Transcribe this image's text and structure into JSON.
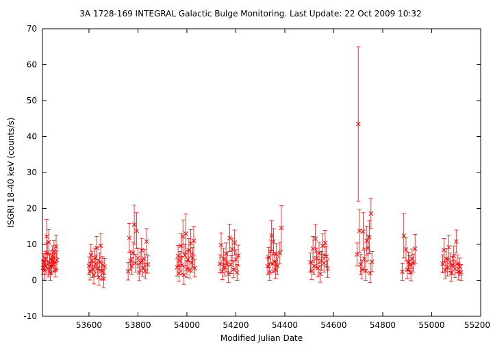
{
  "chart_data": {
    "type": "scatter",
    "title": "3A 1728-169   INTEGRAL Galactic Bulge Monitoring.  Last Update: 22 Oct 2009 10:32",
    "xlabel": "Modified Julian Date",
    "ylabel": "ISGRI 18-40 keV (counts/s)",
    "xlim": [
      53410,
      55200
    ],
    "ylim": [
      -10,
      70
    ],
    "x_ticks": [
      53600,
      53800,
      54000,
      54200,
      54400,
      54600,
      54800,
      55000,
      55200
    ],
    "y_ticks": [
      -10,
      0,
      10,
      20,
      30,
      40,
      50,
      60,
      70
    ],
    "grid": false,
    "legend": "none",
    "marker": "x",
    "series_color": "#ff0000",
    "series": [
      {
        "points": [
          {
            "x": 53412,
            "y": 3.5,
            "err": 2.0
          },
          {
            "x": 53415,
            "y": 5.2,
            "err": 2.2
          },
          {
            "x": 53418,
            "y": 2.8,
            "err": 2.5
          },
          {
            "x": 53421,
            "y": 6.1,
            "err": 2.0
          },
          {
            "x": 53424,
            "y": 4.0,
            "err": 2.3
          },
          {
            "x": 53427,
            "y": 12.2,
            "err": 4.8
          },
          {
            "x": 53430,
            "y": 7.5,
            "err": 3.0
          },
          {
            "x": 53433,
            "y": 3.2,
            "err": 2.2
          },
          {
            "x": 53436,
            "y": 10.6,
            "err": 3.5
          },
          {
            "x": 53439,
            "y": 4.8,
            "err": 2.6
          },
          {
            "x": 53442,
            "y": 2.1,
            "err": 2.1
          },
          {
            "x": 53445,
            "y": 5.9,
            "err": 2.4
          },
          {
            "x": 53448,
            "y": 3.7,
            "err": 2.2
          },
          {
            "x": 53451,
            "y": 6.8,
            "err": 2.8
          },
          {
            "x": 53454,
            "y": 4.4,
            "err": 2.2
          },
          {
            "x": 53457,
            "y": 8.1,
            "err": 3.0
          },
          {
            "x": 53460,
            "y": 5.0,
            "err": 2.5
          },
          {
            "x": 53463,
            "y": 3.0,
            "err": 2.0
          },
          {
            "x": 53466,
            "y": 9.4,
            "err": 3.2
          },
          {
            "x": 53469,
            "y": 5.6,
            "err": 2.6
          },
          {
            "x": 53600,
            "y": 4.0,
            "err": 2.5
          },
          {
            "x": 53604,
            "y": 2.5,
            "err": 2.4
          },
          {
            "x": 53608,
            "y": 7.0,
            "err": 3.0
          },
          {
            "x": 53612,
            "y": 5.5,
            "err": 2.6
          },
          {
            "x": 53616,
            "y": 3.0,
            "err": 2.2
          },
          {
            "x": 53620,
            "y": 1.5,
            "err": 2.5
          },
          {
            "x": 53624,
            "y": 6.2,
            "err": 2.8
          },
          {
            "x": 53628,
            "y": 4.6,
            "err": 2.4
          },
          {
            "x": 53632,
            "y": 9.0,
            "err": 3.2
          },
          {
            "x": 53636,
            "y": 3.4,
            "err": 2.3
          },
          {
            "x": 53640,
            "y": 0.8,
            "err": 2.2
          },
          {
            "x": 53644,
            "y": 5.1,
            "err": 2.5
          },
          {
            "x": 53648,
            "y": 9.6,
            "err": 3.4
          },
          {
            "x": 53652,
            "y": 2.6,
            "err": 2.5
          },
          {
            "x": 53656,
            "y": 4.2,
            "err": 2.4
          },
          {
            "x": 53660,
            "y": 0.5,
            "err": 2.5
          },
          {
            "x": 53664,
            "y": 3.8,
            "err": 2.3
          },
          {
            "x": 53760,
            "y": 2.5,
            "err": 2.4
          },
          {
            "x": 53765,
            "y": 11.8,
            "err": 4.0
          },
          {
            "x": 53770,
            "y": 5.5,
            "err": 2.7
          },
          {
            "x": 53775,
            "y": 3.9,
            "err": 2.4
          },
          {
            "x": 53780,
            "y": 7.6,
            "err": 3.1
          },
          {
            "x": 53785,
            "y": 15.5,
            "err": 5.4
          },
          {
            "x": 53790,
            "y": 4.8,
            "err": 2.5
          },
          {
            "x": 53795,
            "y": 13.8,
            "err": 5.0
          },
          {
            "x": 53800,
            "y": 6.2,
            "err": 2.8
          },
          {
            "x": 53805,
            "y": 2.2,
            "err": 2.3
          },
          {
            "x": 53810,
            "y": 5.0,
            "err": 2.6
          },
          {
            "x": 53815,
            "y": 8.4,
            "err": 3.3
          },
          {
            "x": 53820,
            "y": 3.5,
            "err": 2.4
          },
          {
            "x": 53825,
            "y": 6.0,
            "err": 2.6
          },
          {
            "x": 53830,
            "y": 2.6,
            "err": 2.2
          },
          {
            "x": 53835,
            "y": 10.8,
            "err": 3.6
          },
          {
            "x": 53840,
            "y": 4.4,
            "err": 2.4
          },
          {
            "x": 53960,
            "y": 3.6,
            "err": 2.4
          },
          {
            "x": 53964,
            "y": 6.8,
            "err": 2.9
          },
          {
            "x": 53968,
            "y": 2.0,
            "err": 2.3
          },
          {
            "x": 53972,
            "y": 5.4,
            "err": 2.6
          },
          {
            "x": 53976,
            "y": 9.6,
            "err": 3.4
          },
          {
            "x": 53980,
            "y": 4.2,
            "err": 2.5
          },
          {
            "x": 53984,
            "y": 12.2,
            "err": 4.6
          },
          {
            "x": 53988,
            "y": 1.5,
            "err": 2.6
          },
          {
            "x": 53992,
            "y": 7.0,
            "err": 3.0
          },
          {
            "x": 53996,
            "y": 13.0,
            "err": 5.5
          },
          {
            "x": 54000,
            "y": 3.1,
            "err": 2.3
          },
          {
            "x": 54004,
            "y": 5.8,
            "err": 2.6
          },
          {
            "x": 54008,
            "y": 8.4,
            "err": 3.2
          },
          {
            "x": 54012,
            "y": 2.8,
            "err": 2.4
          },
          {
            "x": 54016,
            "y": 10.3,
            "err": 3.8
          },
          {
            "x": 54020,
            "y": 4.9,
            "err": 2.6
          },
          {
            "x": 54024,
            "y": 6.3,
            "err": 2.8
          },
          {
            "x": 54028,
            "y": 11.0,
            "err": 4.0
          },
          {
            "x": 54032,
            "y": 3.4,
            "err": 2.4
          },
          {
            "x": 54135,
            "y": 4.6,
            "err": 2.5
          },
          {
            "x": 54140,
            "y": 9.8,
            "err": 3.4
          },
          {
            "x": 54145,
            "y": 2.5,
            "err": 2.3
          },
          {
            "x": 54150,
            "y": 6.0,
            "err": 2.8
          },
          {
            "x": 54155,
            "y": 3.6,
            "err": 2.4
          },
          {
            "x": 54160,
            "y": 7.4,
            "err": 3.0
          },
          {
            "x": 54165,
            "y": 5.0,
            "err": 2.6
          },
          {
            "x": 54170,
            "y": 1.8,
            "err": 2.4
          },
          {
            "x": 54175,
            "y": 11.8,
            "err": 3.8
          },
          {
            "x": 54180,
            "y": 4.4,
            "err": 2.5
          },
          {
            "x": 54185,
            "y": 8.6,
            "err": 3.1
          },
          {
            "x": 54190,
            "y": 3.0,
            "err": 2.3
          },
          {
            "x": 54195,
            "y": 10.5,
            "err": 3.5
          },
          {
            "x": 54200,
            "y": 5.8,
            "err": 2.7
          },
          {
            "x": 54205,
            "y": 2.2,
            "err": 2.2
          },
          {
            "x": 54210,
            "y": 6.9,
            "err": 2.9
          },
          {
            "x": 54330,
            "y": 3.9,
            "err": 2.4
          },
          {
            "x": 54334,
            "y": 6.4,
            "err": 2.8
          },
          {
            "x": 54338,
            "y": 2.3,
            "err": 2.3
          },
          {
            "x": 54342,
            "y": 8.0,
            "err": 3.2
          },
          {
            "x": 54346,
            "y": 12.4,
            "err": 4.2
          },
          {
            "x": 54350,
            "y": 4.6,
            "err": 2.5
          },
          {
            "x": 54354,
            "y": 10.8,
            "err": 3.6
          },
          {
            "x": 54358,
            "y": 5.2,
            "err": 2.6
          },
          {
            "x": 54362,
            "y": 2.9,
            "err": 2.3
          },
          {
            "x": 54366,
            "y": 7.2,
            "err": 3.0
          },
          {
            "x": 54370,
            "y": 4.0,
            "err": 2.4
          },
          {
            "x": 54380,
            "y": 7.6,
            "err": 3.0
          },
          {
            "x": 54386,
            "y": 14.6,
            "err": 6.2
          },
          {
            "x": 54505,
            "y": 5.0,
            "err": 2.6
          },
          {
            "x": 54510,
            "y": 2.6,
            "err": 2.4
          },
          {
            "x": 54515,
            "y": 8.8,
            "err": 3.4
          },
          {
            "x": 54520,
            "y": 4.0,
            "err": 2.5
          },
          {
            "x": 54525,
            "y": 11.6,
            "err": 3.9
          },
          {
            "x": 54530,
            "y": 6.2,
            "err": 2.8
          },
          {
            "x": 54535,
            "y": 3.4,
            "err": 2.4
          },
          {
            "x": 54540,
            "y": 7.6,
            "err": 3.0
          },
          {
            "x": 54545,
            "y": 1.8,
            "err": 2.3
          },
          {
            "x": 54550,
            "y": 5.4,
            "err": 2.6
          },
          {
            "x": 54555,
            "y": 9.6,
            "err": 3.3
          },
          {
            "x": 54560,
            "y": 4.8,
            "err": 2.5
          },
          {
            "x": 54565,
            "y": 10.4,
            "err": 3.5
          },
          {
            "x": 54570,
            "y": 6.6,
            "err": 2.8
          },
          {
            "x": 54575,
            "y": 3.2,
            "err": 2.4
          },
          {
            "x": 54695,
            "y": 7.2,
            "err": 3.2
          },
          {
            "x": 54700,
            "y": 43.5,
            "err": 21.5
          },
          {
            "x": 54705,
            "y": 13.8,
            "err": 6.0
          },
          {
            "x": 54710,
            "y": 4.4,
            "err": 2.8
          },
          {
            "x": 54715,
            "y": 3.0,
            "err": 2.6
          },
          {
            "x": 54720,
            "y": 13.6,
            "err": 5.2
          },
          {
            "x": 54725,
            "y": 6.0,
            "err": 3.0
          },
          {
            "x": 54730,
            "y": 2.6,
            "err": 2.6
          },
          {
            "x": 54735,
            "y": 11.0,
            "err": 4.0
          },
          {
            "x": 54740,
            "y": 9.0,
            "err": 3.6
          },
          {
            "x": 54745,
            "y": 12.0,
            "err": 4.6
          },
          {
            "x": 54748,
            "y": 2.0,
            "err": 2.6
          },
          {
            "x": 54752,
            "y": 18.6,
            "err": 4.2
          },
          {
            "x": 54756,
            "y": 5.2,
            "err": 2.8
          },
          {
            "x": 54880,
            "y": 2.4,
            "err": 2.4
          },
          {
            "x": 54886,
            "y": 12.4,
            "err": 6.2
          },
          {
            "x": 54895,
            "y": 8.6,
            "err": 3.2
          },
          {
            "x": 54900,
            "y": 3.0,
            "err": 2.4
          },
          {
            "x": 54905,
            "y": 5.2,
            "err": 2.6
          },
          {
            "x": 54910,
            "y": 4.4,
            "err": 2.5
          },
          {
            "x": 54915,
            "y": 2.2,
            "err": 2.3
          },
          {
            "x": 54920,
            "y": 6.0,
            "err": 2.7
          },
          {
            "x": 54925,
            "y": 4.8,
            "err": 2.5
          },
          {
            "x": 54932,
            "y": 8.8,
            "err": 4.0
          },
          {
            "x": 55045,
            "y": 4.6,
            "err": 2.5
          },
          {
            "x": 55050,
            "y": 8.4,
            "err": 3.2
          },
          {
            "x": 55055,
            "y": 2.8,
            "err": 2.4
          },
          {
            "x": 55060,
            "y": 6.0,
            "err": 2.8
          },
          {
            "x": 55065,
            "y": 3.6,
            "err": 2.4
          },
          {
            "x": 55070,
            "y": 9.2,
            "err": 3.4
          },
          {
            "x": 55075,
            "y": 5.0,
            "err": 2.6
          },
          {
            "x": 55080,
            "y": 2.0,
            "err": 2.3
          },
          {
            "x": 55085,
            "y": 4.2,
            "err": 2.5
          },
          {
            "x": 55090,
            "y": 6.8,
            "err": 2.8
          },
          {
            "x": 55095,
            "y": 3.2,
            "err": 2.4
          },
          {
            "x": 55100,
            "y": 10.8,
            "err": 3.2
          },
          {
            "x": 55105,
            "y": 4.6,
            "err": 2.5
          },
          {
            "x": 55110,
            "y": 2.4,
            "err": 2.3
          },
          {
            "x": 55115,
            "y": 3.8,
            "err": 2.4
          },
          {
            "x": 55120,
            "y": 2.2,
            "err": 2.2
          }
        ]
      }
    ]
  }
}
